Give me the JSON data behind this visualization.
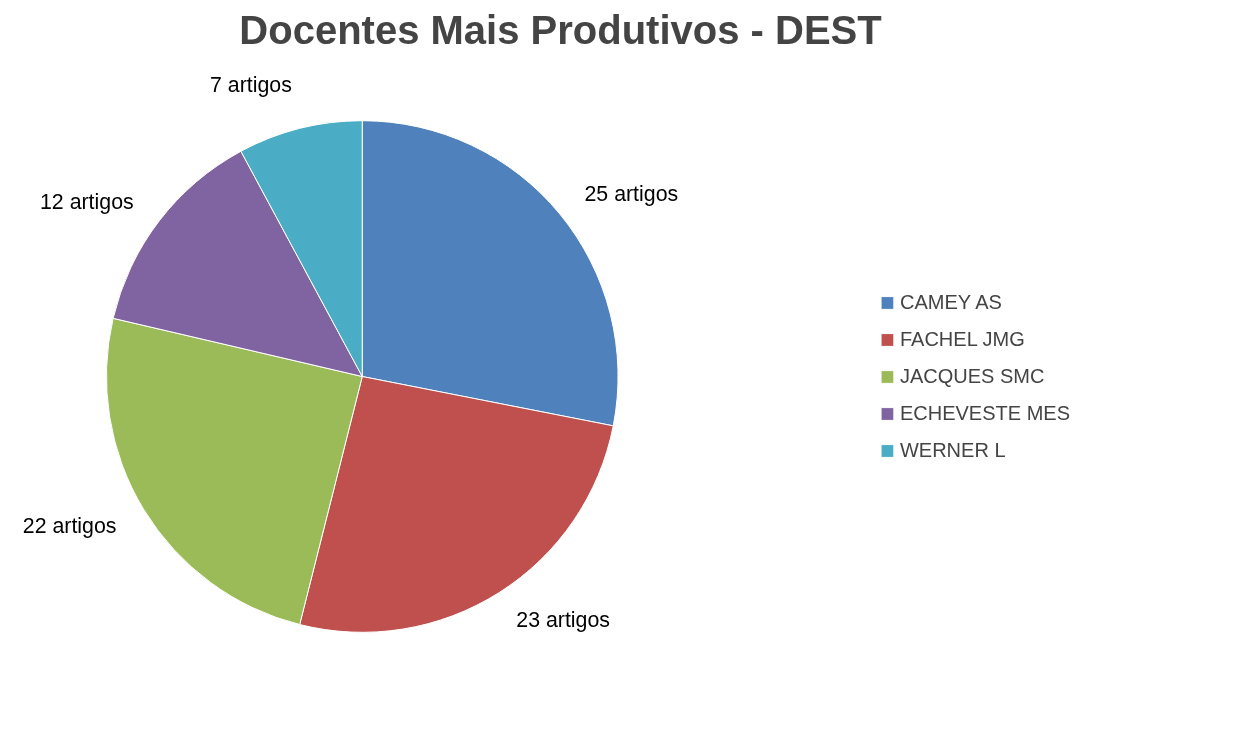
{
  "chart_data": {
    "type": "pie",
    "title": "Docentes Mais Produtivos - DEST",
    "categories": [
      "CAMEY AS",
      "FACHEL JMG",
      "JACQUES SMC",
      "ECHEVESTE MES",
      "WERNER L"
    ],
    "values": [
      25,
      23,
      22,
      12,
      7
    ],
    "value_labels": [
      "25 artigos",
      "23 artigos",
      "22 artigos",
      "12 artigos",
      "7 artigos"
    ],
    "colors": [
      "#4f81bd",
      "#c0504d",
      "#9bbb59",
      "#8064a2",
      "#4bacc6"
    ],
    "legend": "right"
  }
}
